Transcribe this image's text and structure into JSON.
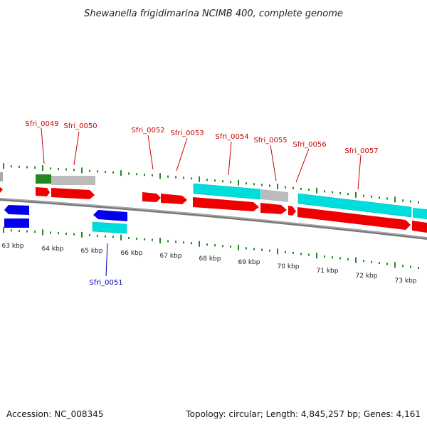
{
  "title": "Shewanella frigidimarina NCIMB 400, complete genome",
  "footer": {
    "accession": "Accession: NC_008345",
    "summary": "Topology: circular; Length: 4,845,257 bp; Genes: 4,161"
  },
  "colors": {
    "forward_cds": "#ee0000",
    "reverse_cds": "#0000ee",
    "forward_feature": "#00dddd",
    "gray_feature": "#bbbbbb",
    "green_feature": "#228822",
    "ticks": "#228822",
    "backbone": "#888888",
    "label_red": "#cc0000",
    "label_blue": "#0000aa"
  },
  "ticks_upper": [
    "63 kbp",
    "64 kbp",
    "65 kbp",
    "66 kbp",
    "67 kbp",
    "68 kbp",
    "69 kbp",
    "70 kbp",
    "71 kbp",
    "72 kbp",
    "73 kbp"
  ],
  "gene_labels": {
    "upper": [
      "Sfri_0049",
      "Sfri_0050",
      "Sfri_0052",
      "Sfri_0053",
      "Sfri_0054",
      "Sfri_0055",
      "Sfri_0056",
      "Sfri_0057"
    ],
    "lower": [
      "Sfri_0051"
    ]
  }
}
